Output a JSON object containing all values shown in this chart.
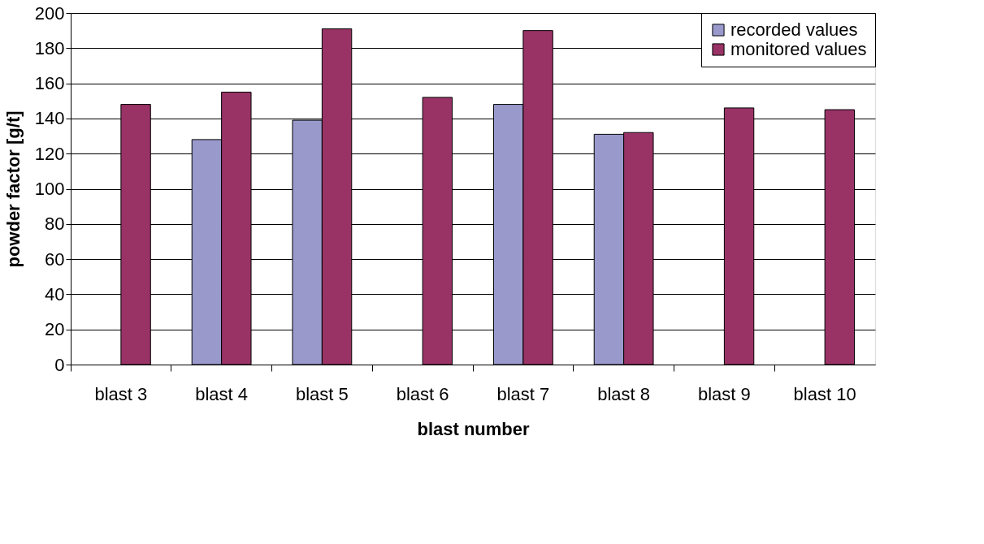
{
  "chart_data": {
    "type": "bar",
    "xlabel": "blast number",
    "ylabel": "powder factor [g/t]",
    "categories": [
      "blast 3",
      "blast 4",
      "blast 5",
      "blast 6",
      "blast 7",
      "blast 8",
      "blast 9",
      "blast 10"
    ],
    "series": [
      {
        "name": "recorded values",
        "color": "#9999cc",
        "values": [
          null,
          128,
          139,
          null,
          148,
          131,
          null,
          null
        ]
      },
      {
        "name": "monitored values",
        "color": "#993366",
        "values": [
          148,
          155,
          191,
          152,
          190,
          132,
          146,
          145
        ]
      }
    ],
    "ylim": [
      0,
      200
    ],
    "yticks": [
      0,
      20,
      40,
      60,
      80,
      100,
      120,
      140,
      160,
      180,
      200
    ],
    "grid": "y",
    "legend": "top right"
  }
}
